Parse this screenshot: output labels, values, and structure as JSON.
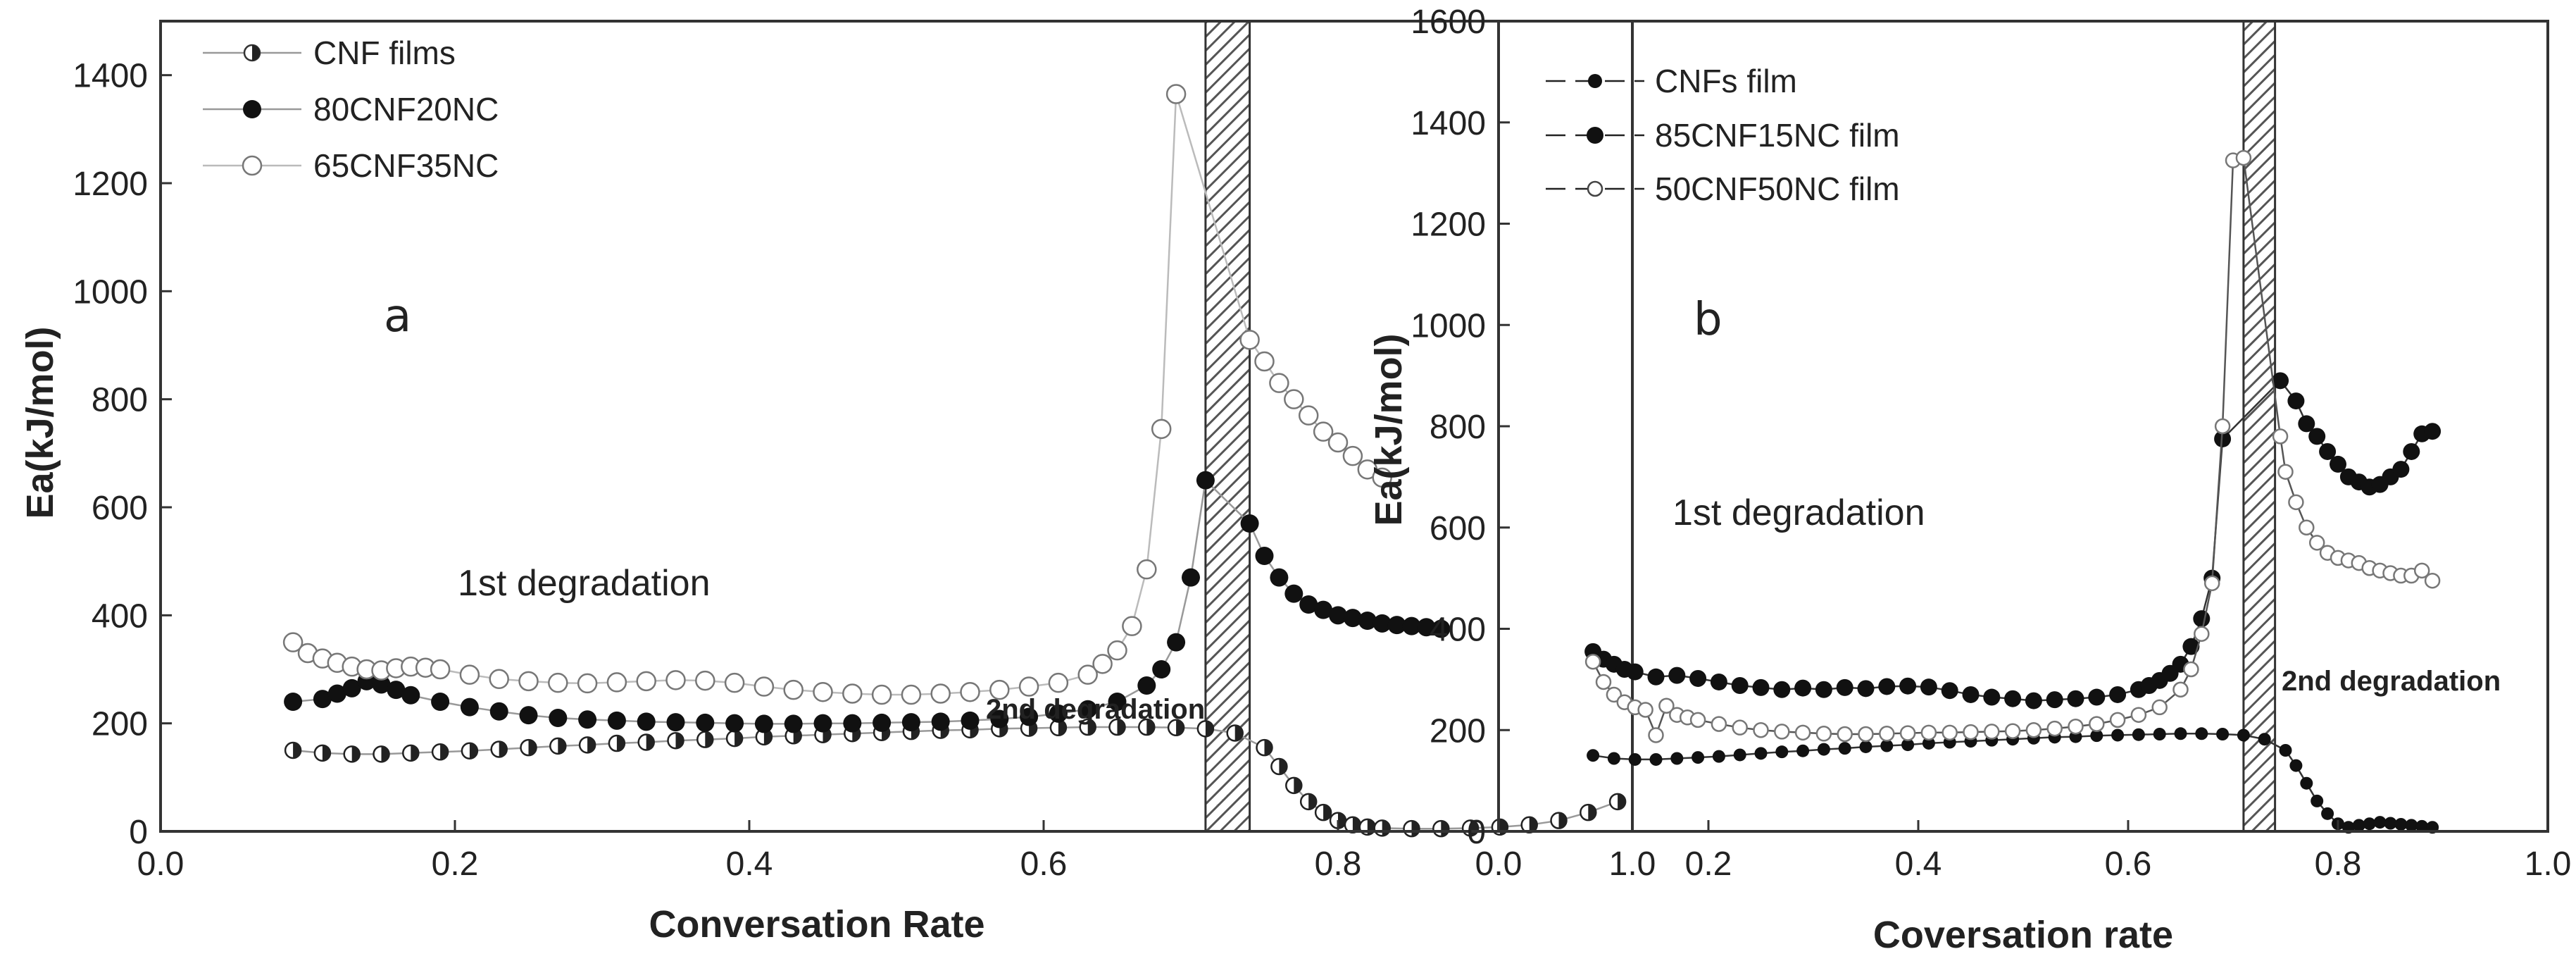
{
  "chart_data": [
    {
      "type": "scatter",
      "panel_label": "a",
      "xlabel": "Conversation Rate",
      "ylabel": "Ea(kJ/mol)",
      "xlim": [
        0.0,
        1.0
      ],
      "ylim": [
        0,
        1500
      ],
      "xticks": [
        "0.0",
        "0.2",
        "0.4",
        "0.6",
        "0.8",
        "1.0"
      ],
      "yticks": [
        "0",
        "200",
        "400",
        "600",
        "800",
        "1000",
        "1200",
        "1400"
      ],
      "xtick_values": [
        0.0,
        0.2,
        0.4,
        0.6,
        0.8,
        1.0
      ],
      "ytick_values": [
        0,
        200,
        400,
        600,
        800,
        1000,
        1200,
        1400
      ],
      "legend_position": "top-left",
      "band_range": [
        0.71,
        0.74
      ],
      "annotations": {
        "first": "1st degradation",
        "second": "2nd degradation"
      },
      "series": [
        {
          "name": "CNF films",
          "marker": "half-filled",
          "x": [
            0.09,
            0.11,
            0.13,
            0.15,
            0.17,
            0.19,
            0.21,
            0.23,
            0.25,
            0.27,
            0.29,
            0.31,
            0.33,
            0.35,
            0.37,
            0.39,
            0.41,
            0.43,
            0.45,
            0.47,
            0.49,
            0.51,
            0.53,
            0.55,
            0.57,
            0.59,
            0.61,
            0.63,
            0.65,
            0.67,
            0.69,
            0.71,
            0.73,
            0.75,
            0.76,
            0.77,
            0.78,
            0.79,
            0.8,
            0.81,
            0.82,
            0.83,
            0.85,
            0.87,
            0.89,
            0.91,
            0.93,
            0.95,
            0.97,
            0.99
          ],
          "values": [
            150,
            145,
            143,
            143,
            145,
            147,
            149,
            152,
            155,
            158,
            160,
            163,
            165,
            168,
            170,
            172,
            175,
            177,
            179,
            181,
            183,
            185,
            187,
            188,
            190,
            191,
            192,
            193,
            193,
            193,
            192,
            190,
            182,
            155,
            120,
            85,
            55,
            35,
            20,
            12,
            8,
            6,
            5,
            5,
            6,
            8,
            12,
            20,
            35,
            55
          ]
        },
        {
          "name": "80CNF20NC",
          "marker": "filled",
          "x": [
            0.09,
            0.11,
            0.12,
            0.13,
            0.14,
            0.15,
            0.16,
            0.17,
            0.19,
            0.21,
            0.23,
            0.25,
            0.27,
            0.29,
            0.31,
            0.33,
            0.35,
            0.37,
            0.39,
            0.41,
            0.43,
            0.45,
            0.47,
            0.49,
            0.51,
            0.53,
            0.55,
            0.57,
            0.59,
            0.61,
            0.63,
            0.65,
            0.67,
            0.68,
            0.69,
            0.7,
            0.71,
            0.74,
            0.75,
            0.76,
            0.77,
            0.78,
            0.79,
            0.8,
            0.81,
            0.82,
            0.83,
            0.84,
            0.85,
            0.86,
            0.87
          ],
          "values": [
            240,
            245,
            255,
            265,
            278,
            272,
            262,
            252,
            240,
            230,
            222,
            215,
            210,
            207,
            205,
            203,
            202,
            201,
            200,
            199,
            199,
            200,
            200,
            201,
            202,
            203,
            205,
            208,
            212,
            218,
            226,
            240,
            270,
            300,
            350,
            470,
            650,
            570,
            510,
            470,
            440,
            420,
            410,
            400,
            395,
            390,
            385,
            382,
            380,
            378,
            375
          ]
        },
        {
          "name": "65CNF35NC",
          "marker": "open",
          "x": [
            0.09,
            0.1,
            0.11,
            0.12,
            0.13,
            0.14,
            0.15,
            0.16,
            0.17,
            0.18,
            0.19,
            0.21,
            0.23,
            0.25,
            0.27,
            0.29,
            0.31,
            0.33,
            0.35,
            0.37,
            0.39,
            0.41,
            0.43,
            0.45,
            0.47,
            0.49,
            0.51,
            0.53,
            0.55,
            0.57,
            0.59,
            0.61,
            0.63,
            0.64,
            0.65,
            0.66,
            0.67,
            0.68,
            0.69,
            0.74,
            0.75,
            0.76,
            0.77,
            0.78,
            0.79,
            0.8,
            0.81,
            0.82,
            0.83
          ],
          "values": [
            350,
            330,
            320,
            312,
            305,
            300,
            298,
            302,
            305,
            303,
            300,
            290,
            282,
            278,
            275,
            274,
            276,
            278,
            280,
            279,
            275,
            268,
            262,
            258,
            255,
            253,
            253,
            255,
            258,
            262,
            268,
            275,
            290,
            310,
            335,
            380,
            485,
            745,
            1365,
            910,
            870,
            830,
            800,
            770,
            740,
            720,
            695,
            670,
            655
          ]
        }
      ]
    },
    {
      "type": "scatter",
      "panel_label": "b",
      "xlabel": "Coversation rate",
      "ylabel": "Ea(kJ/mol)",
      "xlim": [
        0.0,
        1.0
      ],
      "ylim": [
        0,
        1600
      ],
      "xticks": [
        "0.0",
        "0.2",
        "0.4",
        "0.6",
        "0.8",
        "1.0"
      ],
      "yticks": [
        "0",
        "200",
        "400",
        "600",
        "800",
        "1000",
        "1200",
        "1400",
        "1600"
      ],
      "xtick_values": [
        0.0,
        0.2,
        0.4,
        0.6,
        0.8,
        1.0
      ],
      "ytick_values": [
        0,
        200,
        400,
        600,
        800,
        1000,
        1200,
        1400,
        1600
      ],
      "legend_position": "top-left",
      "band_range": [
        0.71,
        0.74
      ],
      "annotations": {
        "first": "1st degradation",
        "second": "2nd degradation"
      },
      "series": [
        {
          "name": "CNFs film",
          "marker": "filled-small",
          "x": [
            0.09,
            0.11,
            0.13,
            0.15,
            0.17,
            0.19,
            0.21,
            0.23,
            0.25,
            0.27,
            0.29,
            0.31,
            0.33,
            0.35,
            0.37,
            0.39,
            0.41,
            0.43,
            0.45,
            0.47,
            0.49,
            0.51,
            0.53,
            0.55,
            0.57,
            0.59,
            0.61,
            0.63,
            0.65,
            0.67,
            0.69,
            0.71,
            0.73,
            0.75,
            0.76,
            0.77,
            0.78,
            0.79,
            0.8,
            0.81,
            0.82,
            0.83,
            0.84,
            0.85,
            0.86,
            0.87,
            0.88,
            0.89
          ],
          "values": [
            150,
            144,
            142,
            142,
            144,
            146,
            148,
            151,
            154,
            157,
            159,
            162,
            164,
            167,
            169,
            171,
            174,
            176,
            178,
            180,
            182,
            184,
            186,
            187,
            189,
            190,
            191,
            192,
            193,
            193,
            192,
            190,
            182,
            160,
            130,
            95,
            60,
            35,
            15,
            8,
            12,
            15,
            18,
            16,
            14,
            12,
            10,
            8
          ]
        },
        {
          "name": "85CNF15NC film",
          "marker": "filled",
          "x": [
            0.09,
            0.1,
            0.11,
            0.12,
            0.13,
            0.15,
            0.17,
            0.19,
            0.21,
            0.23,
            0.25,
            0.27,
            0.29,
            0.31,
            0.33,
            0.35,
            0.37,
            0.39,
            0.41,
            0.43,
            0.45,
            0.47,
            0.49,
            0.51,
            0.53,
            0.55,
            0.57,
            0.59,
            0.61,
            0.62,
            0.63,
            0.64,
            0.65,
            0.66,
            0.67,
            0.68,
            0.69,
            0.745,
            0.76,
            0.77,
            0.78,
            0.79,
            0.8,
            0.81,
            0.82,
            0.83,
            0.84,
            0.85,
            0.86,
            0.87,
            0.88,
            0.89
          ],
          "values": [
            355,
            340,
            330,
            320,
            315,
            305,
            308,
            302,
            295,
            288,
            284,
            280,
            283,
            280,
            284,
            282,
            286,
            287,
            285,
            278,
            270,
            265,
            262,
            258,
            260,
            262,
            265,
            270,
            280,
            288,
            298,
            312,
            330,
            365,
            420,
            500,
            775,
            890,
            850,
            805,
            780,
            750,
            725,
            700,
            690,
            680,
            685,
            700,
            715,
            750,
            785,
            790
          ]
        },
        {
          "name": "50CNF50NC film",
          "marker": "open-small",
          "x": [
            0.09,
            0.1,
            0.11,
            0.12,
            0.13,
            0.14,
            0.15,
            0.16,
            0.17,
            0.18,
            0.19,
            0.21,
            0.23,
            0.25,
            0.27,
            0.29,
            0.31,
            0.33,
            0.35,
            0.37,
            0.39,
            0.41,
            0.43,
            0.45,
            0.47,
            0.49,
            0.51,
            0.53,
            0.55,
            0.57,
            0.59,
            0.61,
            0.63,
            0.65,
            0.66,
            0.67,
            0.68,
            0.69,
            0.7,
            0.71,
            0.745,
            0.75,
            0.76,
            0.77,
            0.78,
            0.79,
            0.8,
            0.81,
            0.82,
            0.83,
            0.84,
            0.85,
            0.86,
            0.87,
            0.88,
            0.89
          ],
          "values": [
            335,
            295,
            270,
            255,
            245,
            240,
            190,
            248,
            230,
            225,
            220,
            212,
            205,
            200,
            197,
            195,
            193,
            192,
            192,
            193,
            194,
            195,
            195,
            196,
            197,
            198,
            200,
            203,
            207,
            212,
            220,
            230,
            245,
            280,
            320,
            390,
            490,
            800,
            1325,
            1330,
            780,
            710,
            650,
            600,
            570,
            550,
            540,
            535,
            530,
            520,
            515,
            510,
            505,
            505,
            515,
            495
          ]
        }
      ]
    }
  ]
}
